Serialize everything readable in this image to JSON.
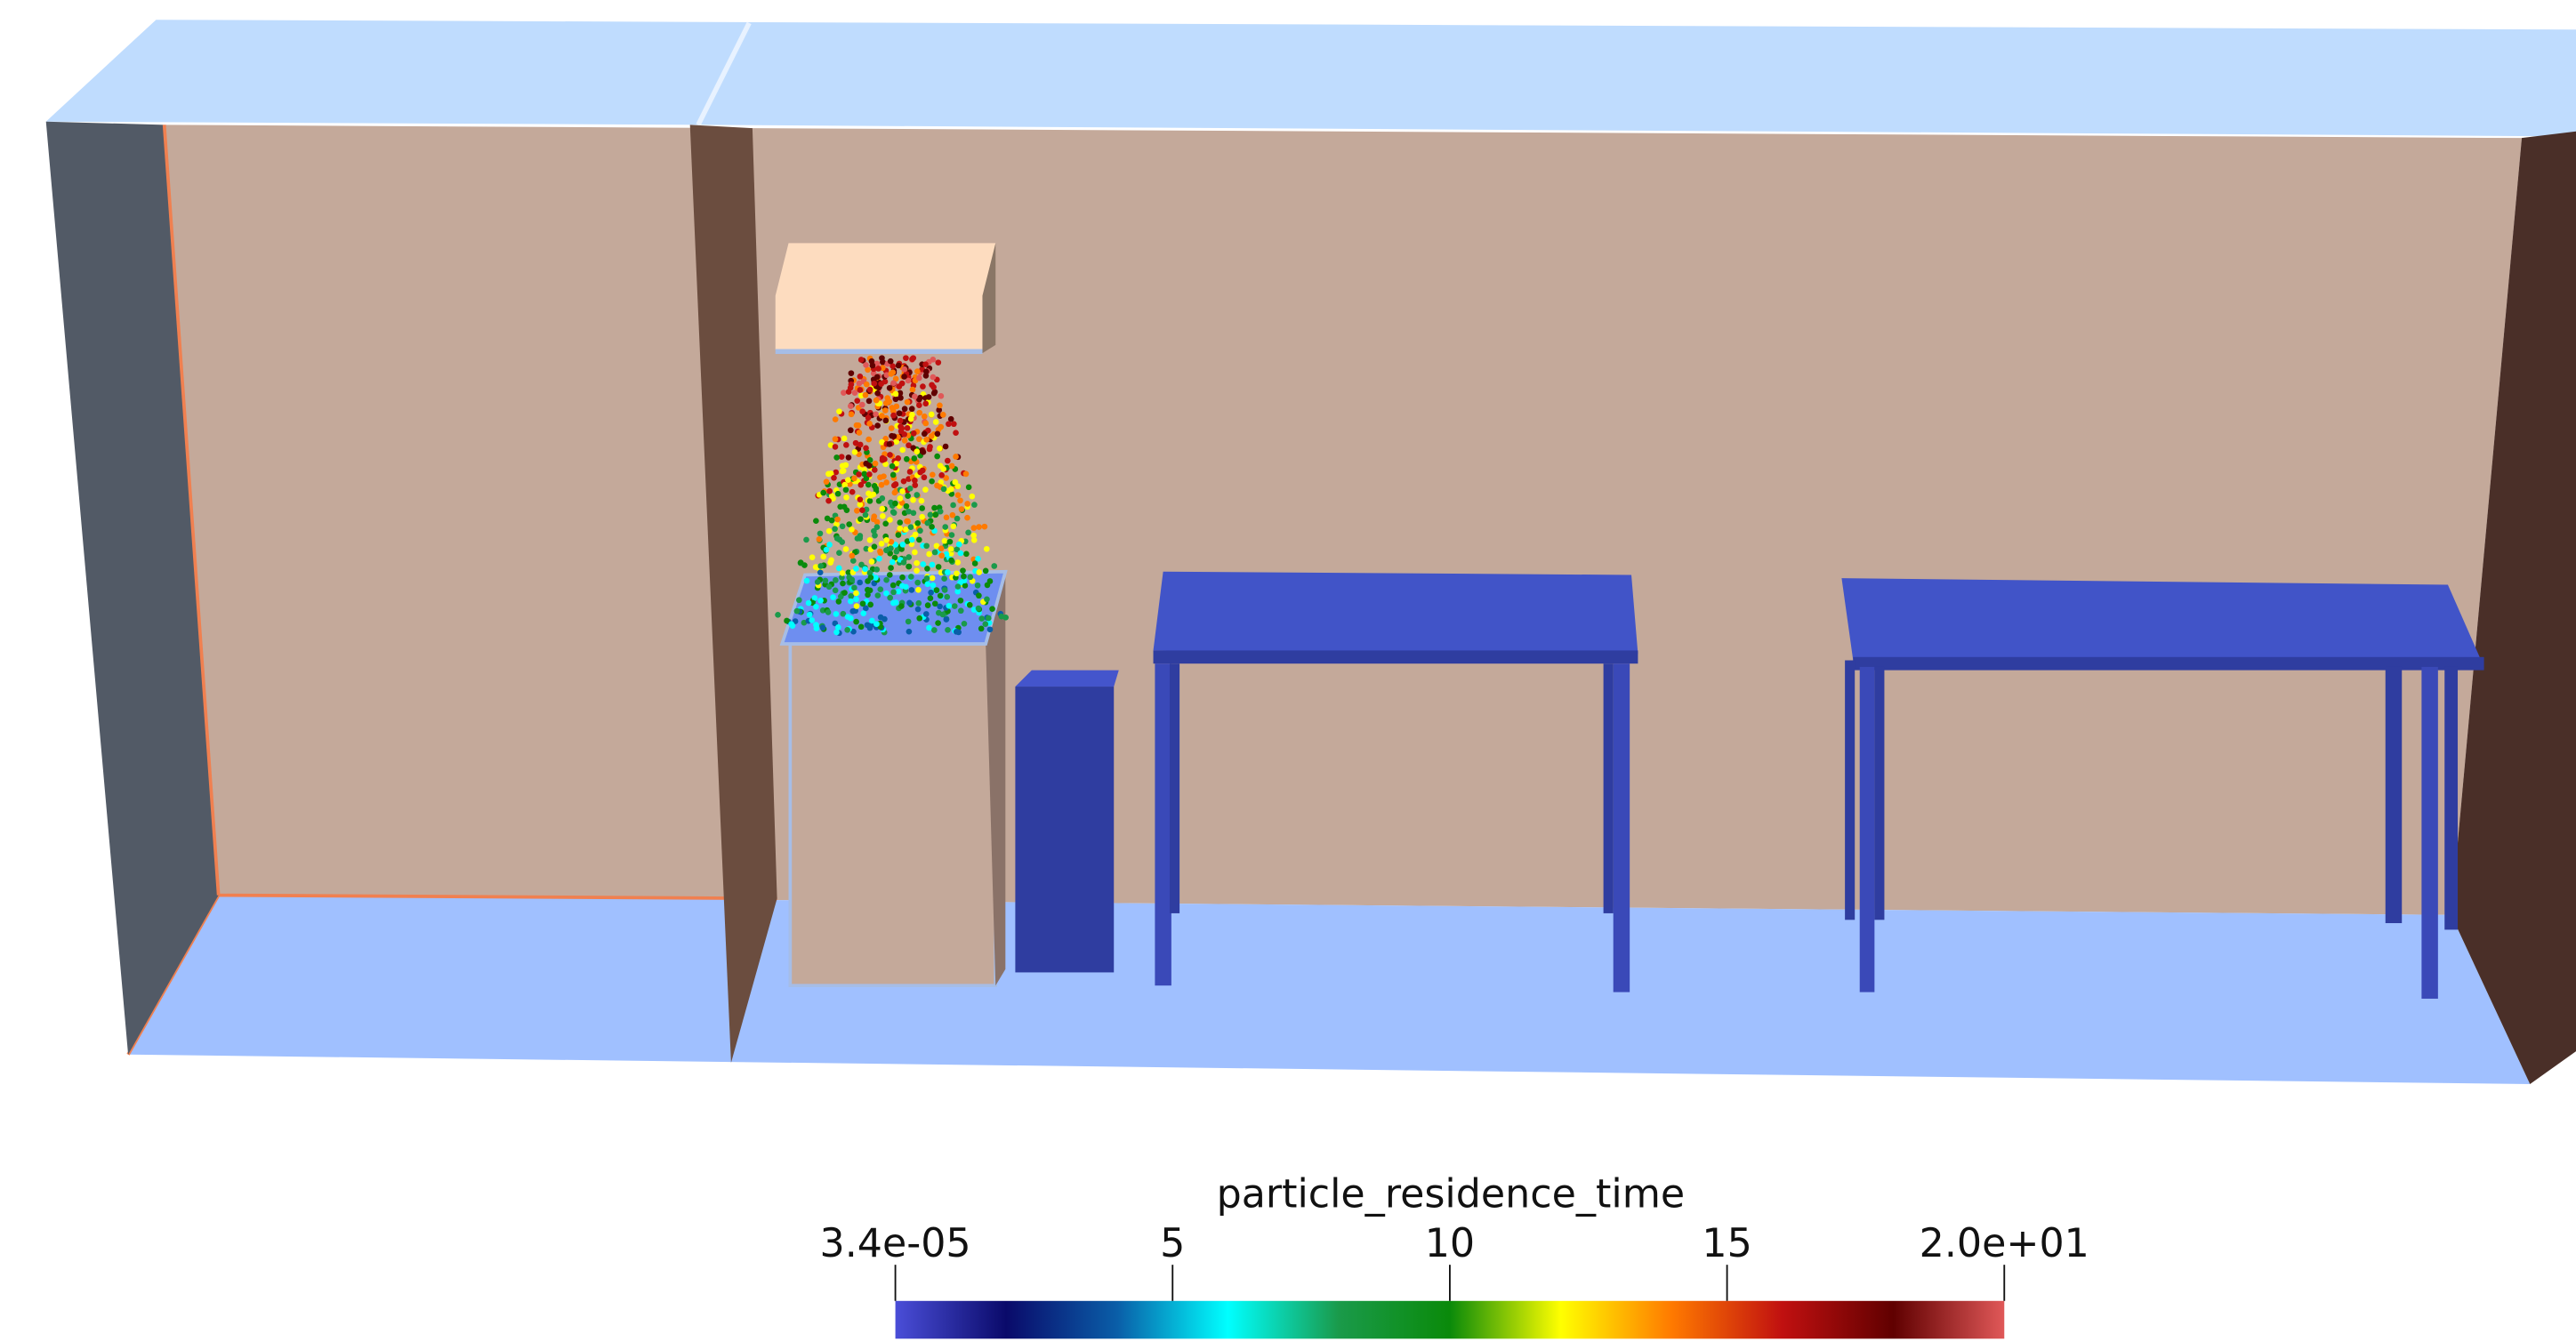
{
  "colorbar": {
    "title": "particle_residence_time",
    "range": [
      3.4e-05,
      20
    ],
    "ticks": [
      {
        "value": 3.4e-05,
        "label": "3.4e-05"
      },
      5,
      10,
      15,
      {
        "value": 20,
        "label": "2.0e+01"
      }
    ],
    "colormap": [
      "#4a4ed8",
      "#0a0a6a",
      "#0a5ea8",
      "#00ffff",
      "#1a9a4a",
      "#0a8a0a",
      "#ffff00",
      "#ff7a00",
      "#c01010",
      "#600000",
      "#e05858"
    ]
  }
}
